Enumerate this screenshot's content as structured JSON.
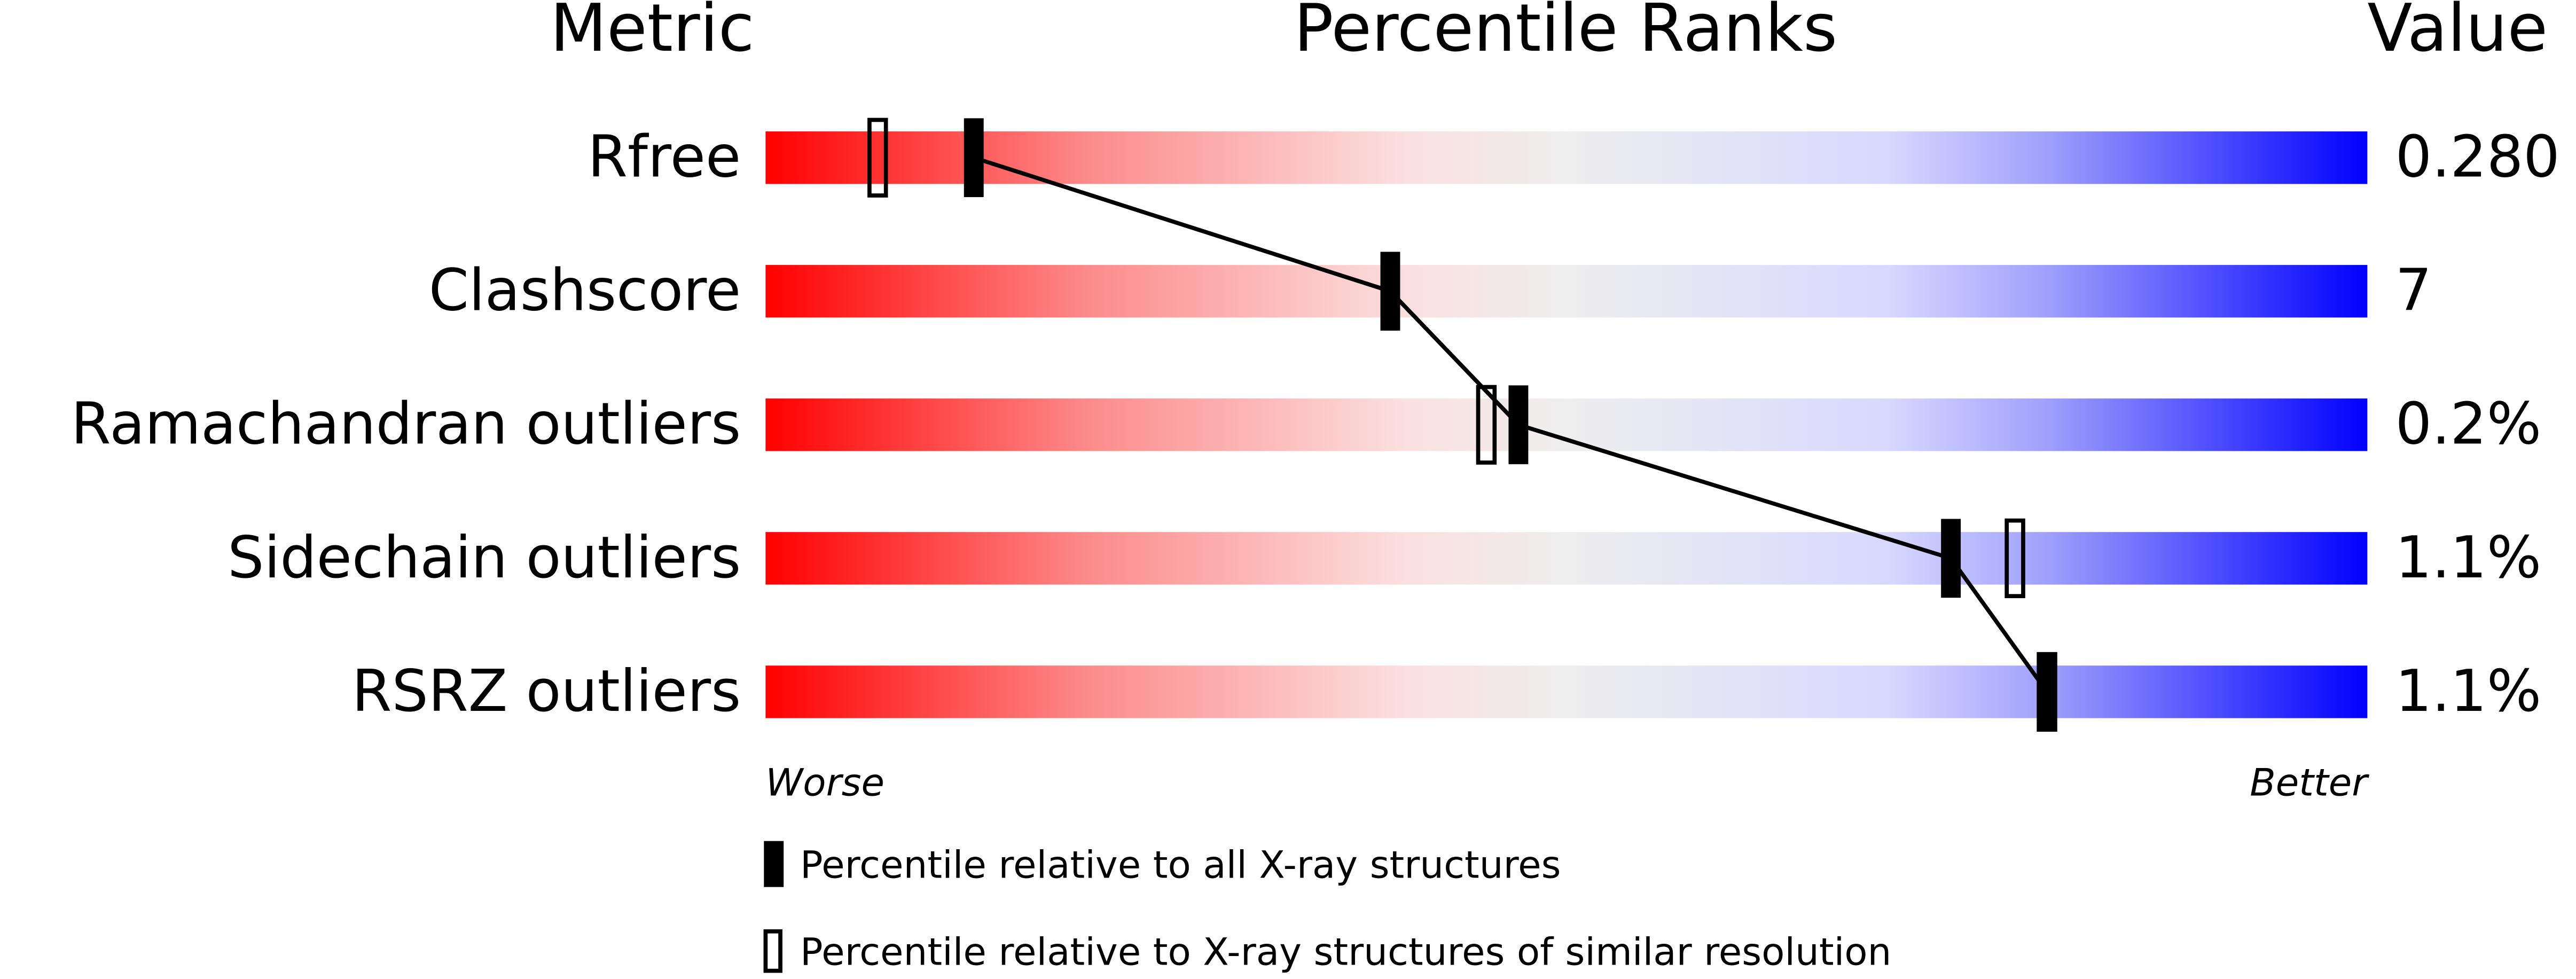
{
  "chart_data": {
    "type": "percentile",
    "title": "Percentile Ranks",
    "category_header": "Metric",
    "value_header": "Value",
    "categories": [
      "Rfree",
      "Clashscore",
      "Ramachandran outliers",
      "Sidechain outliers",
      "RSRZ outliers"
    ],
    "metric_values": [
      "0.280",
      "7",
      "0.2%",
      "1.1%",
      "1.1%"
    ],
    "xlim": [
      0,
      100
    ],
    "low_label": "Worse",
    "high_label": "Better",
    "series": [
      {
        "name": "Percentile relative to all X-ray structures",
        "color": "#000000",
        "style": "filled",
        "values": [
          13,
          39,
          47,
          74,
          80
        ]
      },
      {
        "name": "Percentile relative to X-ray structures of similar resolution",
        "color": "#000000",
        "style": "open",
        "values": [
          7,
          null,
          45,
          78,
          80
        ]
      }
    ]
  }
}
